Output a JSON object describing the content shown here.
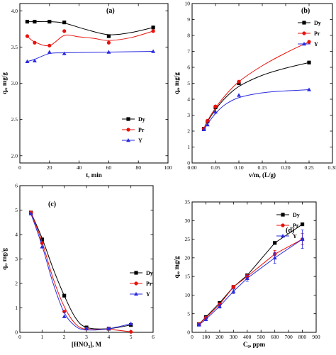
{
  "chart_data": [
    {
      "id": "a",
      "type": "line",
      "tag": "(a)",
      "xlabel": "t, min",
      "ylabel": "qₑ, mg/g",
      "xlim": [
        0,
        100
      ],
      "ylim": [
        1.9,
        4.1
      ],
      "xticks": [
        0,
        20,
        40,
        60,
        80,
        100
      ],
      "yticks": [
        2.0,
        2.5,
        3.0,
        3.5,
        4.0
      ],
      "xtick_labels": [
        "0",
        "20",
        "40",
        "60",
        "80",
        "100"
      ],
      "ytick_labels": [
        "2.0",
        "2.5",
        "3.0",
        "3.5",
        "4.0"
      ],
      "legend_position": "lower-right",
      "series": [
        {
          "name": "Dy",
          "color": "#000000",
          "marker": "square",
          "x": [
            5,
            10,
            20,
            30,
            60,
            90
          ],
          "y": [
            3.85,
            3.85,
            3.85,
            3.84,
            3.65,
            3.77
          ],
          "curve_x": [
            5,
            10,
            20,
            30,
            45,
            60,
            75,
            90
          ],
          "curve_y": [
            3.85,
            3.85,
            3.85,
            3.83,
            3.74,
            3.67,
            3.7,
            3.77
          ]
        },
        {
          "name": "Pr",
          "color": "#e8120c",
          "marker": "circle",
          "x": [
            5,
            10,
            20,
            30,
            60,
            90
          ],
          "y": [
            3.65,
            3.56,
            3.52,
            3.72,
            3.56,
            3.72
          ],
          "curve_x": [
            5,
            10,
            20,
            30,
            40,
            50,
            60,
            75,
            90
          ],
          "curve_y": [
            3.65,
            3.57,
            3.52,
            3.66,
            3.64,
            3.62,
            3.59,
            3.63,
            3.72
          ]
        },
        {
          "name": "Y",
          "color": "#2a2ae0",
          "marker": "triangle",
          "x": [
            5,
            10,
            20,
            30,
            60,
            90
          ],
          "y": [
            3.3,
            3.31,
            3.43,
            3.41,
            3.43,
            3.44
          ],
          "curve_x": [
            5,
            10,
            20,
            30,
            60,
            90
          ],
          "curve_y": [
            3.3,
            3.33,
            3.41,
            3.42,
            3.43,
            3.44
          ]
        }
      ]
    },
    {
      "id": "b",
      "type": "line",
      "tag": "(b)",
      "xlabel": "v/m, (L/g)",
      "ylabel": "qₑ, mg/g",
      "xlim": [
        0,
        0.3
      ],
      "ylim": [
        0,
        10
      ],
      "xticks": [
        0,
        0.05,
        0.1,
        0.15,
        0.2,
        0.25,
        0.3
      ],
      "yticks": [
        0,
        1,
        2,
        3,
        4,
        5,
        6,
        7,
        8,
        9,
        10
      ],
      "xtick_labels": [
        "0.00",
        "0.05",
        "0.10",
        "0.15",
        "0.20",
        "0.25",
        "0.30"
      ],
      "ytick_labels": [
        "0",
        "1",
        "2",
        "3",
        "4",
        "5",
        "6",
        "7",
        "8",
        "9",
        "10"
      ],
      "legend_position": "top-right",
      "series": [
        {
          "name": "Dy",
          "color": "#000000",
          "marker": "square",
          "x": [
            0.025,
            0.033,
            0.05,
            0.1,
            0.25
          ],
          "y": [
            2.15,
            2.6,
            3.5,
            5.0,
            6.3
          ],
          "curve_x": [
            0.025,
            0.033,
            0.05,
            0.07,
            0.1,
            0.15,
            0.2,
            0.25
          ],
          "curve_y": [
            2.15,
            2.6,
            3.35,
            4.05,
            4.8,
            5.5,
            5.95,
            6.3
          ]
        },
        {
          "name": "Pr",
          "color": "#e8120c",
          "marker": "circle",
          "x": [
            0.025,
            0.033,
            0.05,
            0.1,
            0.25
          ],
          "y": [
            2.15,
            2.65,
            3.55,
            5.1,
            7.6
          ],
          "curve_x": [
            0.025,
            0.033,
            0.05,
            0.07,
            0.1,
            0.15,
            0.2,
            0.25
          ],
          "curve_y": [
            2.15,
            2.65,
            3.45,
            4.2,
            5.1,
            6.1,
            6.9,
            7.6
          ]
        },
        {
          "name": "Y",
          "color": "#2a2ae0",
          "marker": "triangle",
          "x": [
            0.025,
            0.033,
            0.05,
            0.1,
            0.25
          ],
          "y": [
            2.1,
            2.4,
            3.2,
            4.25,
            4.6
          ],
          "curve_x": [
            0.025,
            0.033,
            0.05,
            0.07,
            0.1,
            0.15,
            0.2,
            0.25
          ],
          "curve_y": [
            2.1,
            2.45,
            3.1,
            3.65,
            4.1,
            4.4,
            4.52,
            4.6
          ]
        }
      ]
    },
    {
      "id": "c",
      "type": "line",
      "tag": "(c)",
      "xlabel": "[HNO₃], M",
      "ylabel": "qₑ, mg/g",
      "xlim": [
        0,
        6
      ],
      "ylim": [
        0,
        6
      ],
      "xticks": [
        0,
        1,
        2,
        3,
        4,
        5,
        6
      ],
      "yticks": [
        0,
        1,
        2,
        3,
        4,
        5,
        6
      ],
      "xtick_labels": [
        "0",
        "1",
        "2",
        "3",
        "4",
        "5",
        "6"
      ],
      "ytick_labels": [
        "0",
        "1",
        "2",
        "3",
        "4",
        "5",
        "6"
      ],
      "legend_position": "right",
      "series": [
        {
          "name": "Dy",
          "color": "#000000",
          "marker": "square",
          "x": [
            0.5,
            1,
            2,
            3,
            4,
            5
          ],
          "y": [
            4.9,
            3.8,
            1.5,
            0.2,
            0.15,
            0.3
          ],
          "curve_x": [
            0.5,
            1,
            1.5,
            2,
            2.5,
            3,
            4,
            5
          ],
          "curve_y": [
            4.9,
            3.85,
            2.6,
            1.5,
            0.6,
            0.2,
            0.15,
            0.3
          ]
        },
        {
          "name": "Pr",
          "color": "#e8120c",
          "marker": "circle",
          "x": [
            0.5,
            1,
            2,
            3,
            4,
            5
          ],
          "y": [
            4.9,
            3.65,
            0.85,
            0.15,
            0.15,
            0.02
          ],
          "curve_x": [
            0.5,
            1,
            1.5,
            2,
            2.5,
            3,
            4,
            5
          ],
          "curve_y": [
            4.9,
            3.7,
            2.2,
            1.05,
            0.35,
            0.12,
            0.12,
            0.02
          ]
        },
        {
          "name": "Y",
          "color": "#2a2ae0",
          "marker": "triangle",
          "x": [
            0.5,
            1,
            2,
            3,
            4,
            5
          ],
          "y": [
            4.85,
            3.5,
            0.65,
            0.15,
            0.15,
            0.35
          ],
          "curve_x": [
            0.5,
            1,
            1.5,
            2,
            2.5,
            3,
            4,
            5
          ],
          "curve_y": [
            4.85,
            3.55,
            2.0,
            0.8,
            0.25,
            0.1,
            0.15,
            0.35
          ]
        }
      ]
    },
    {
      "id": "d",
      "type": "line",
      "tag": "(d)",
      "xlabel": "C₀, ppm",
      "ylabel": "qₑ, mg/g",
      "xlim": [
        0,
        900
      ],
      "ylim": [
        0,
        35
      ],
      "xticks": [
        0,
        100,
        200,
        300,
        400,
        500,
        600,
        700,
        800,
        900
      ],
      "yticks": [
        0,
        5,
        10,
        15,
        20,
        25,
        30,
        35
      ],
      "xtick_labels": [
        "0",
        "100",
        "200",
        "300",
        "400",
        "500",
        "600",
        "700",
        "800",
        "900"
      ],
      "ytick_labels": [
        "0",
        "5",
        "10",
        "15",
        "20",
        "25",
        "30",
        "35"
      ],
      "legend_position": "top-right",
      "series": [
        {
          "name": "Dy",
          "color": "#000000",
          "marker": "square",
          "x": [
            50,
            100,
            200,
            300,
            400,
            600,
            800
          ],
          "y": [
            2.2,
            4.1,
            7.9,
            12.2,
            15.3,
            24.0,
            29.0
          ],
          "err": [
            0,
            0,
            0,
            0,
            0,
            0,
            0
          ]
        },
        {
          "name": "Pr",
          "color": "#e8120c",
          "marker": "circle",
          "x": [
            50,
            100,
            200,
            300,
            400,
            600,
            800
          ],
          "y": [
            2.2,
            3.9,
            7.5,
            12.2,
            15.0,
            21.0,
            25.0
          ],
          "err": [
            0.2,
            0.3,
            0.4,
            0.4,
            0.5,
            1.0,
            1.5
          ]
        },
        {
          "name": "Y",
          "color": "#2a2ae0",
          "marker": "triangle",
          "x": [
            50,
            100,
            200,
            300,
            400,
            600,
            800
          ],
          "y": [
            2.0,
            3.5,
            7.0,
            11.0,
            14.5,
            20.0,
            25.0
          ],
          "err": [
            0.3,
            0.4,
            0.5,
            0.6,
            0.8,
            1.5,
            2.5
          ]
        }
      ]
    }
  ]
}
